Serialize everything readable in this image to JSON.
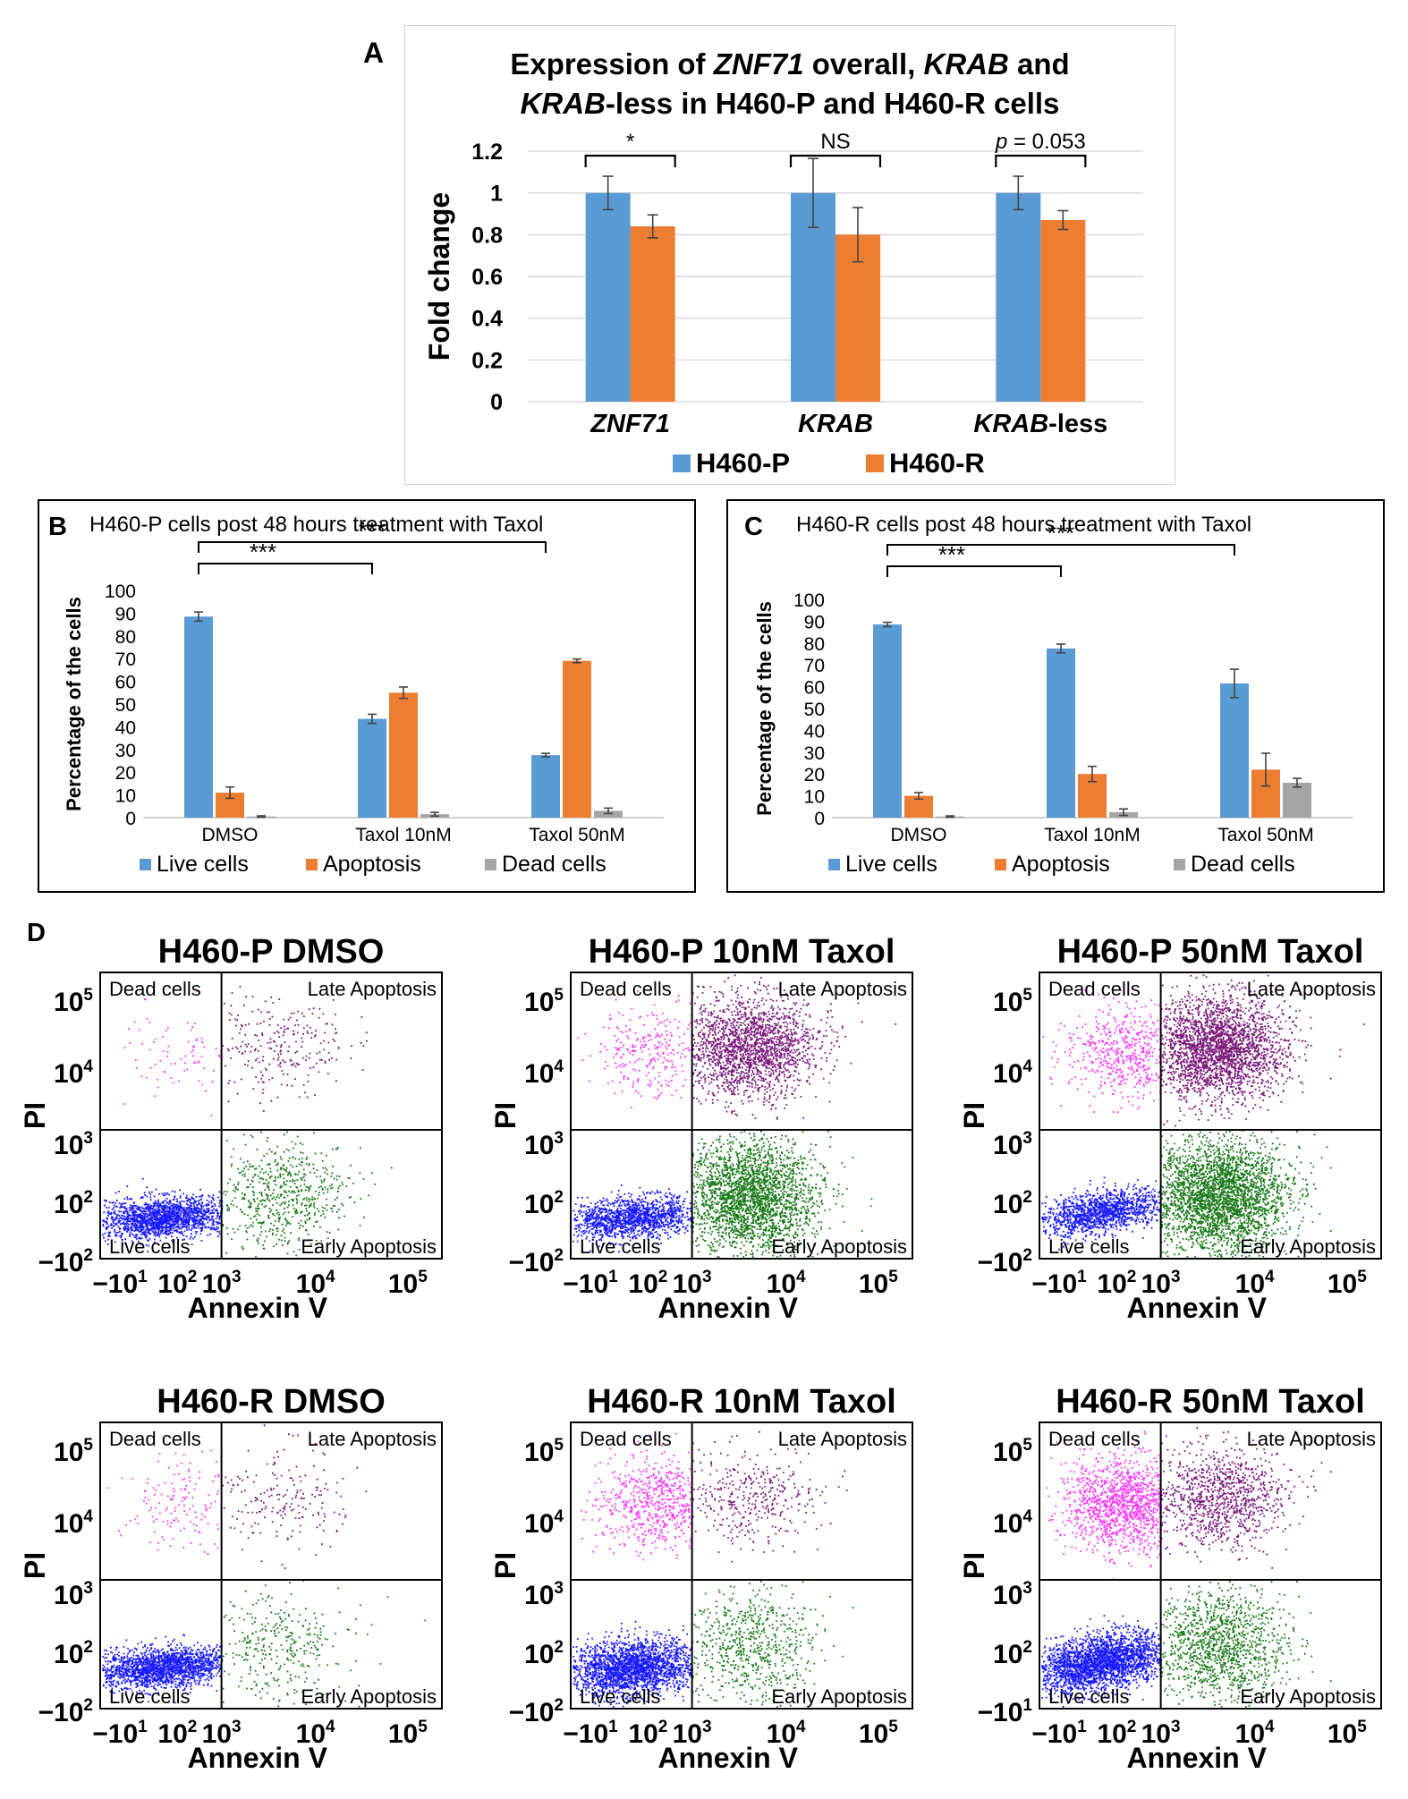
{
  "colors": {
    "h460p": "#5b9bd5",
    "h460r": "#ed7d31",
    "dead": "#a5a5a5",
    "live_dots": "#1a1aff",
    "dead_dots": "#ff33ff",
    "late_dots": "#7a1a7a",
    "early_dots": "#1a7a1a",
    "grid": "#d9d9d9"
  },
  "panels": {
    "A": "A",
    "B": "B",
    "C": "C",
    "D": "D"
  },
  "chart_data": [
    {
      "id": "A",
      "type": "bar",
      "title_parts": [
        "Expression of ",
        "ZNF71",
        " overall, ",
        "KRAB",
        " and"
      ],
      "title_line2_parts": [
        "KRAB",
        "-less in H460-P and H460-R cells"
      ],
      "ylabel": "Fold change",
      "ylim": [
        0,
        1.2
      ],
      "yticks": [
        "0",
        "0.2",
        "0.4",
        "0.6",
        "0.8",
        "1",
        "1.2"
      ],
      "categories": [
        {
          "italic": "ZNF71",
          "rest": ""
        },
        {
          "italic": "KRAB",
          "rest": ""
        },
        {
          "italic": "KRAB",
          "rest": "-less"
        }
      ],
      "series": [
        {
          "name": "H460-P",
          "values": [
            1.0,
            1.0,
            1.0
          ],
          "errors": [
            0.08,
            0.165,
            0.08
          ]
        },
        {
          "name": "H460-R",
          "values": [
            0.84,
            0.8,
            0.87
          ],
          "errors": [
            0.055,
            0.13,
            0.045
          ]
        }
      ],
      "significance": [
        {
          "label": "*",
          "italic_p": false
        },
        {
          "label": "NS",
          "italic_p": false
        },
        {
          "label_p": "p",
          "label_rest": " = 0.053",
          "italic_p": true
        }
      ],
      "legend": [
        "H460-P",
        "H460-R"
      ]
    },
    {
      "id": "B",
      "type": "bar",
      "title": "H460-P cells post 48 hours treatment with Taxol",
      "ylabel": "Percentage of the cells",
      "ylim": [
        0,
        100
      ],
      "yticks": [
        "0",
        "10",
        "20",
        "30",
        "40",
        "50",
        "60",
        "70",
        "80",
        "90",
        "100"
      ],
      "categories": [
        "DMSO",
        "Taxol 10nM",
        "Taxol 50nM"
      ],
      "series": [
        {
          "name": "Live cells",
          "values": [
            88.5,
            43.5,
            27.5
          ],
          "errors": [
            2.0,
            2.0,
            0.8
          ]
        },
        {
          "name": "Apoptosis",
          "values": [
            11,
            55,
            69
          ],
          "errors": [
            2.5,
            2.5,
            0.8
          ]
        },
        {
          "name": "Dead cells",
          "values": [
            0.5,
            1.5,
            3
          ],
          "errors": [
            0.3,
            0.8,
            1.2
          ]
        }
      ],
      "brackets": [
        "***",
        "***"
      ],
      "legend": [
        "Live cells",
        "Apoptosis",
        "Dead cells"
      ]
    },
    {
      "id": "C",
      "type": "bar",
      "title": "H460-R cells post 48 hours treatment with Taxol",
      "ylabel": "Percentage of the cells",
      "ylim": [
        0,
        100
      ],
      "yticks": [
        "0",
        "10",
        "20",
        "30",
        "40",
        "50",
        "60",
        "70",
        "80",
        "90",
        "100"
      ],
      "categories": [
        "DMSO",
        "Taxol 10nM",
        "Taxol 50nM"
      ],
      "series": [
        {
          "name": "Live cells",
          "values": [
            88.5,
            77.5,
            61.5
          ],
          "errors": [
            1.0,
            2.0,
            6.5
          ]
        },
        {
          "name": "Apoptosis",
          "values": [
            10,
            20,
            22
          ],
          "errors": [
            1.5,
            3.5,
            7.5
          ]
        },
        {
          "name": "Dead cells",
          "values": [
            0.5,
            2.5,
            16
          ],
          "errors": [
            0.3,
            1.5,
            2.0
          ]
        }
      ],
      "brackets": [
        "***",
        "***"
      ],
      "legend": [
        "Live cells",
        "Apoptosis",
        "Dead cells"
      ]
    },
    {
      "id": "D",
      "type": "scatter",
      "xlabel": "Annexin V",
      "ylabel": "PI",
      "xticks": [
        "−10",
        "10",
        "10",
        "10",
        "10"
      ],
      "xtick_exp": [
        "1",
        "2",
        "3",
        "4",
        "5"
      ],
      "quadrants": {
        "tl": "Dead cells",
        "tr": "Late Apoptosis",
        "bl": "Live cells",
        "br": "Early Apoptosis"
      },
      "plots": [
        {
          "title": "H460-P DMSO",
          "ybottom": "−10",
          "ybottom_exp": "2",
          "counts": {
            "live": 1800,
            "early": 650,
            "late": 260,
            "dead": 90
          }
        },
        {
          "title": "H460-P 10nM Taxol",
          "ybottom": "−10",
          "ybottom_exp": "2",
          "counts": {
            "live": 1500,
            "early": 2600,
            "late": 2000,
            "dead": 300
          }
        },
        {
          "title": "H460-P 50nM Taxol",
          "ybottom": "−10",
          "ybottom_exp": "2",
          "counts": {
            "live": 1400,
            "early": 3000,
            "late": 2600,
            "dead": 600
          }
        },
        {
          "title": "H460-R DMSO",
          "ybottom": "−10",
          "ybottom_exp": "2",
          "counts": {
            "live": 1900,
            "early": 350,
            "late": 200,
            "dead": 160
          }
        },
        {
          "title": "H460-R 10nM Taxol",
          "ybottom": "−10",
          "ybottom_exp": "2",
          "counts": {
            "live": 2300,
            "early": 700,
            "late": 400,
            "dead": 700
          }
        },
        {
          "title": "H460-R 50nM Taxol",
          "ybottom": "−10",
          "ybottom_exp": "1",
          "counts": {
            "live": 2600,
            "early": 1300,
            "late": 1100,
            "dead": 1400
          }
        }
      ],
      "ytick_labels": [
        "10",
        "10",
        "10",
        "10"
      ],
      "ytick_exp": [
        "5",
        "4",
        "3",
        "2"
      ]
    }
  ]
}
